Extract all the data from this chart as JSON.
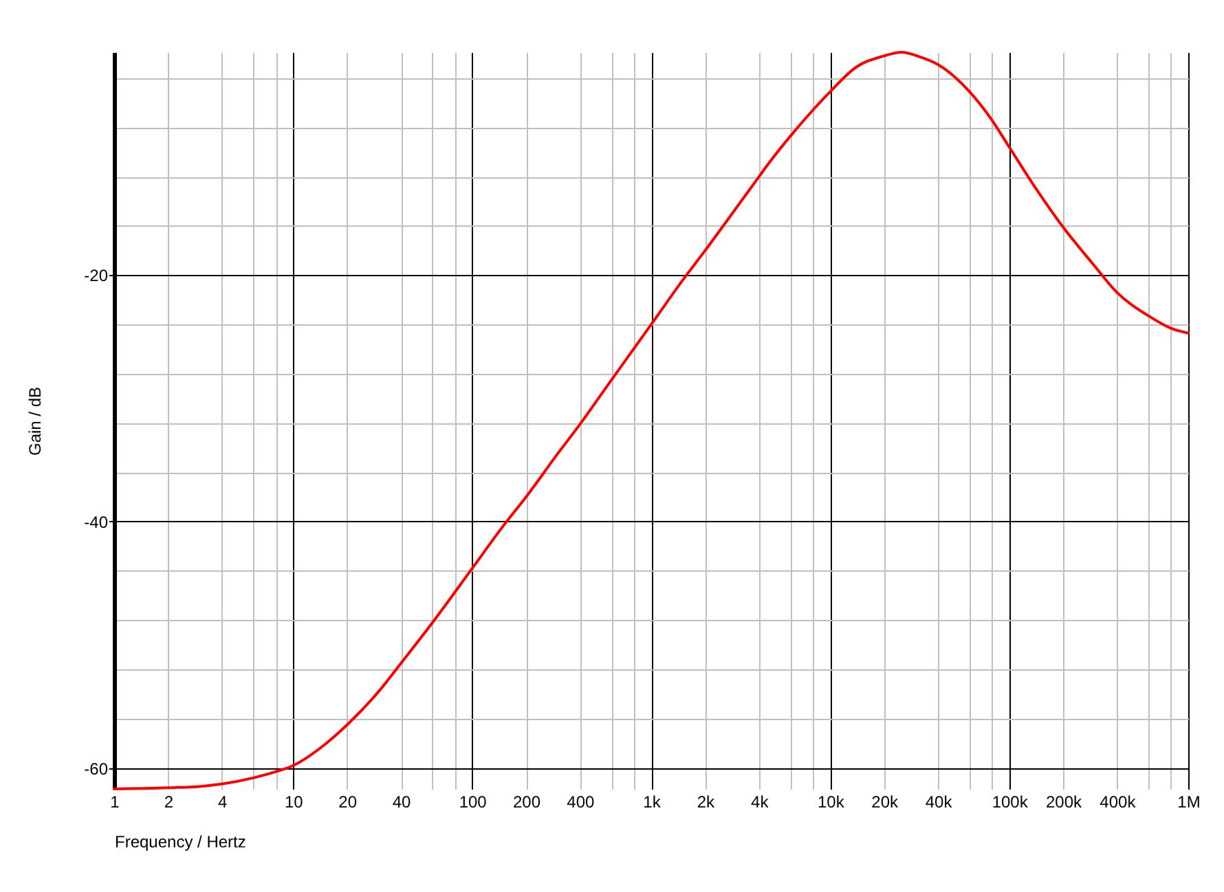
{
  "chart_data": {
    "type": "line",
    "xlabel": "Frequency / Hertz",
    "ylabel": "Gain / dB",
    "log": "x",
    "grid": true,
    "line_style": "solid",
    "xlim": [
      1,
      1000000
    ],
    "ylim": [
      -61.7,
      -1.9
    ],
    "xticks": [
      1,
      2,
      4,
      {
        "value": 6,
        "label": null
      },
      {
        "value": 8,
        "label": null
      },
      10,
      20,
      40,
      {
        "value": 60,
        "label": null
      },
      {
        "value": 80,
        "label": null
      },
      100,
      200,
      400,
      {
        "value": 600,
        "label": null
      },
      {
        "value": 800,
        "label": null
      },
      {
        "value": 1000,
        "label": "1k"
      },
      {
        "value": 2000,
        "label": "2k"
      },
      {
        "value": 4000,
        "label": "4k"
      },
      {
        "value": 6000,
        "label": null
      },
      {
        "value": 8000,
        "label": null
      },
      {
        "value": 10000,
        "label": "10k"
      },
      {
        "value": 20000,
        "label": "20k"
      },
      {
        "value": 40000,
        "label": "40k"
      },
      {
        "value": 60000,
        "label": null
      },
      {
        "value": 80000,
        "label": null
      },
      {
        "value": 100000,
        "label": "100k"
      },
      {
        "value": 200000,
        "label": "200k"
      },
      {
        "value": 400000,
        "label": "400k"
      },
      {
        "value": 600000,
        "label": null
      },
      {
        "value": 800000,
        "label": null
      },
      {
        "value": 1000000,
        "label": "1M"
      }
    ],
    "yticks": [
      -60,
      {
        "value": -56,
        "label": null
      },
      {
        "value": -52,
        "label": null
      },
      {
        "value": -48,
        "label": null
      },
      {
        "value": -44,
        "label": null
      },
      -40,
      {
        "value": -36,
        "label": null
      },
      {
        "value": -32,
        "label": null
      },
      {
        "value": -28,
        "label": null
      },
      {
        "value": -24,
        "label": null
      },
      -20,
      {
        "value": -16,
        "label": null
      },
      {
        "value": -12,
        "label": null
      },
      {
        "value": -8,
        "label": null
      },
      {
        "value": -4,
        "label": null
      }
    ],
    "x": [
      1,
      2,
      3,
      4,
      6,
      8,
      10,
      15,
      20,
      30,
      40,
      60,
      100,
      150,
      200,
      300,
      400,
      600,
      1000,
      1500,
      2000,
      3000,
      4000,
      4600,
      6000,
      8000,
      10000,
      14000,
      20000,
      25000,
      32000,
      40000,
      60000,
      80000,
      100000,
      140000,
      200000,
      290000,
      400000,
      600000,
      800000,
      1000000
    ],
    "series": [
      {
        "color": "#ff0000",
        "values": [
          -61.7,
          -61.6,
          -61.5,
          -61.3,
          -60.8,
          -60.3,
          -59.8,
          -58.1,
          -56.5,
          -53.8,
          -51.5,
          -48.2,
          -43.8,
          -40.3,
          -38.0,
          -34.5,
          -32.1,
          -28.5,
          -24.0,
          -20.4,
          -18.0,
          -14.5,
          -12.0,
          -10.8,
          -8.7,
          -6.6,
          -5.1,
          -3.1,
          -2.2,
          -1.9,
          -2.3,
          -2.9,
          -5.1,
          -7.4,
          -9.6,
          -12.9,
          -16.1,
          -19.0,
          -21.4,
          -23.3,
          -24.3,
          -24.7
        ]
      }
    ]
  }
}
